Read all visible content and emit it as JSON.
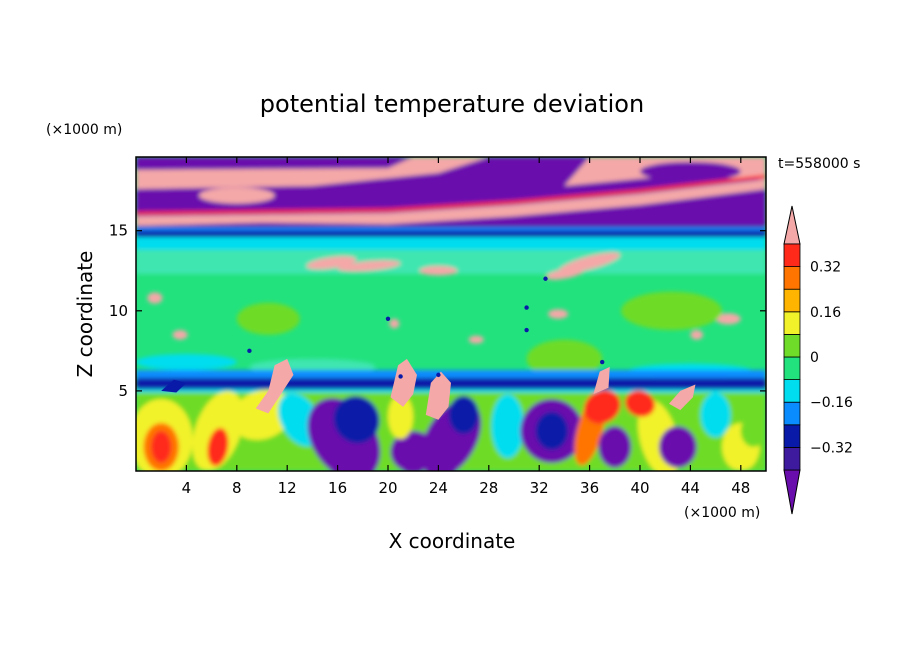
{
  "chart_data": {
    "type": "heatmap",
    "title": "potential temperature deviation",
    "xlabel": "X coordinate",
    "ylabel": "Z coordinate",
    "x_unit": "(×1000 m)",
    "y_unit": "(×1000 m)",
    "time_label": "t=558000 s",
    "xlim": [
      0,
      50
    ],
    "ylim": [
      0,
      19.6
    ],
    "x_ticks": [
      4,
      8,
      12,
      16,
      20,
      24,
      28,
      32,
      36,
      40,
      44,
      48
    ],
    "x_tick_labels": [
      "4",
      "8",
      "12",
      "16",
      "20",
      "24",
      "28",
      "32",
      "36",
      "40",
      "44",
      "48"
    ],
    "y_ticks": [
      5,
      10,
      15
    ],
    "y_tick_labels": [
      "5",
      "10",
      "15"
    ],
    "colorbar": {
      "levels": [
        -0.4,
        -0.32,
        -0.24,
        -0.16,
        -0.08,
        0,
        0.08,
        0.16,
        0.24,
        0.32,
        0.4
      ],
      "tick_values": [
        -0.32,
        -0.16,
        0,
        0.16,
        0.32
      ],
      "tick_labels": [
        "−0.32",
        "−0.16",
        "0",
        "0.16",
        "0.32"
      ],
      "colors": [
        "#6a0dad",
        "#3d1a9e",
        "#0a1aa8",
        "#0a8cff",
        "#00ddee",
        "#22e27e",
        "#6edc28",
        "#f2f22a",
        "#ffb400",
        "#ff7500",
        "#ff2a1a",
        "#f4a8a8"
      ],
      "extend": "both"
    },
    "field_description_bands": [
      {
        "z_range": [
          15.5,
          19.6
        ],
        "pattern": "alternating strong positive/negative layers"
      },
      {
        "z_range": [
          5.5,
          15
        ],
        "pattern": "near zero with small positive spots"
      },
      {
        "z_range": [
          0,
          5.5
        ],
        "pattern": "convective structures, mixed positive/negative"
      }
    ]
  }
}
